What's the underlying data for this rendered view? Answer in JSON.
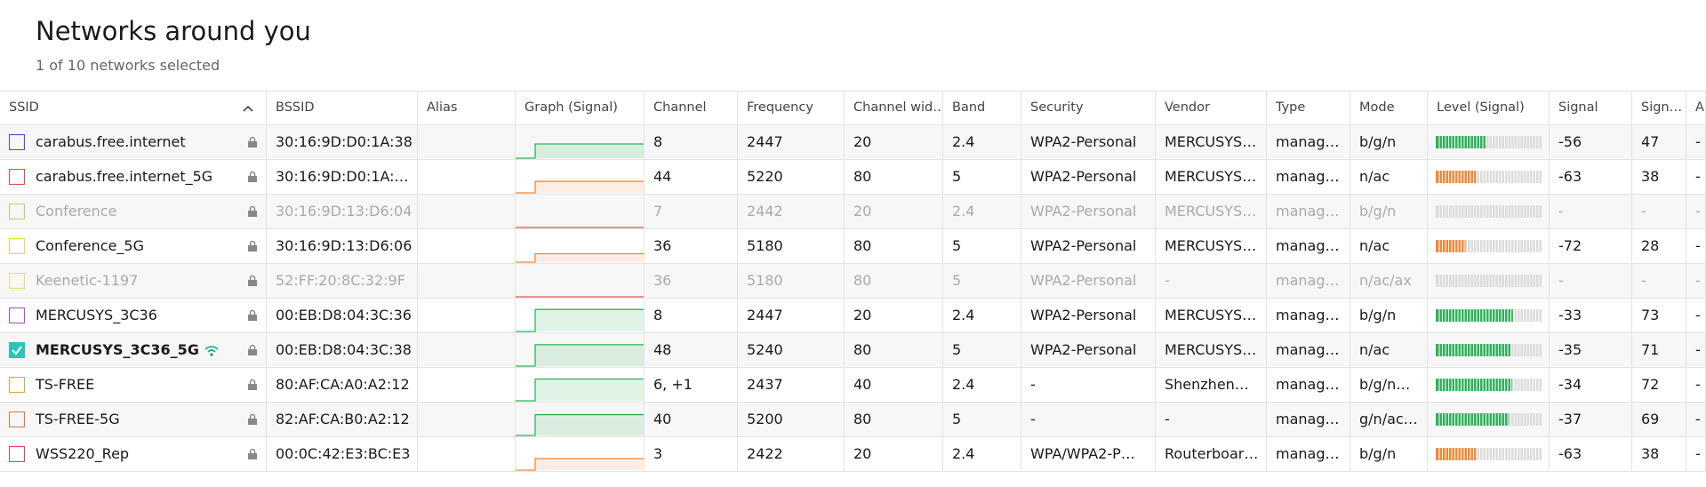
{
  "header": {
    "title": "Networks around you",
    "subtitle": "1 of 10 networks selected"
  },
  "table": {
    "columns": [
      "SSID",
      "BSSID",
      "Alias",
      "Graph (Signal)",
      "Channel",
      "Frequency",
      "Channel wid…",
      "Band",
      "Security",
      "Vendor",
      "Type",
      "Mode",
      "Level (Signal)",
      "Signal",
      "Sign…",
      "A"
    ],
    "rows": [
      {
        "ssid": "carabus.free.internet",
        "bssid": "30:16:9D:D0:1A:38",
        "channel": 8,
        "frequency": 2447,
        "channel_width": 20,
        "band": 2.4,
        "security": "WPA2-Personal",
        "vendor": "MERCUSYS…",
        "type": "manag…",
        "mode": "b/g/n",
        "signal": -56,
        "signal_quality": 47,
        "a": "-",
        "check_color": "#5b4fc7",
        "level_color": "#2fb35a"
      },
      {
        "ssid": "carabus.free.internet_5G",
        "bssid": "30:16:9D:D0:1A:…",
        "channel": 44,
        "frequency": 5220,
        "channel_width": 80,
        "band": 5,
        "security": "WPA2-Personal",
        "vendor": "MERCUSYS…",
        "type": "manag…",
        "mode": "n/ac",
        "signal": -63,
        "signal_quality": 38,
        "a": "-",
        "check_color": "#d9534f",
        "level_color": "#f0893a"
      },
      {
        "ssid": "Conference",
        "bssid": "30:16:9D:13:D6:04",
        "channel": 7,
        "frequency": 2442,
        "channel_width": 20,
        "band": 2.4,
        "security": "WPA2-Personal",
        "vendor": "MERCUSYS…",
        "type": "manag…",
        "mode": "b/g/n",
        "signal": "-",
        "signal_quality": "-",
        "a": "-",
        "check_color": "#b5d56a",
        "dimmed": true
      },
      {
        "ssid": "Conference_5G",
        "bssid": "30:16:9D:13:D6:06",
        "channel": 36,
        "frequency": 5180,
        "channel_width": 80,
        "band": 5,
        "security": "WPA2-Personal",
        "vendor": "MERCUSYS…",
        "type": "manag…",
        "mode": "n/ac",
        "signal": -72,
        "signal_quality": 28,
        "a": "-",
        "check_color": "#e8d84a",
        "level_color": "#f0893a"
      },
      {
        "ssid": "Keenetic-1197",
        "bssid": "52:FF:20:8C:32:9F",
        "channel": 36,
        "frequency": 5180,
        "channel_width": 80,
        "band": 5,
        "security": "WPA2-Personal",
        "vendor": "-",
        "type": "manag…",
        "mode": "n/ac/ax",
        "signal": "-",
        "signal_quality": "-",
        "a": "-",
        "check_color": "#e3e07a",
        "dimmed": true
      },
      {
        "ssid": "MERCUSYS_3C36",
        "bssid": "00:EB:D8:04:3C:36",
        "channel": 8,
        "frequency": 2447,
        "channel_width": 20,
        "band": 2.4,
        "security": "WPA2-Personal",
        "vendor": "MERCUSYS…",
        "type": "manag…",
        "mode": "b/g/n",
        "signal": -33,
        "signal_quality": 73,
        "a": "-",
        "check_color": "#b84fc0",
        "level_color": "#2fb35a"
      },
      {
        "ssid": "MERCUSYS_3C36_5G",
        "bssid": "00:EB:D8:04:3C:38",
        "channel": 48,
        "frequency": 5240,
        "channel_width": 80,
        "band": 5,
        "security": "WPA2-Personal",
        "vendor": "MERCUSYS…",
        "type": "manag…",
        "mode": "n/ac",
        "signal": -35,
        "signal_quality": 71,
        "a": "-",
        "check_color": "#2bc4b8",
        "level_color": "#2fb35a",
        "selected": true,
        "connected": true
      },
      {
        "ssid": "TS-FREE",
        "bssid": "80:AF:CA:A0:A2:12",
        "channel": "6, +1",
        "frequency": 2437,
        "channel_width": 40,
        "band": 2.4,
        "security": "-",
        "vendor": "Shenzhen…",
        "type": "manag…",
        "mode": "b/g/n…",
        "signal": -34,
        "signal_quality": 72,
        "a": "-",
        "check_color": "#e0a050",
        "level_color": "#2fb35a"
      },
      {
        "ssid": "TS-FREE-5G",
        "bssid": "82:AF:CA:B0:A2:12",
        "channel": 40,
        "frequency": 5200,
        "channel_width": 80,
        "band": 5,
        "security": "-",
        "vendor": "-",
        "type": "manag…",
        "mode": "g/n/ac…",
        "signal": -37,
        "signal_quality": 69,
        "a": "-",
        "check_color": "#e07a4a",
        "level_color": "#2fb35a"
      },
      {
        "ssid": "WSS220_Rep",
        "bssid": "00:0C:42:E3:BC:E3",
        "channel": 3,
        "frequency": 2422,
        "channel_width": 20,
        "band": 2.4,
        "security": "WPA/WPA2-P…",
        "vendor": "Routerboar…",
        "type": "manag…",
        "mode": "b/g/n",
        "signal": -63,
        "signal_quality": 38,
        "a": "-",
        "check_color": "#d04a6a",
        "level_color": "#f0893a"
      }
    ]
  }
}
